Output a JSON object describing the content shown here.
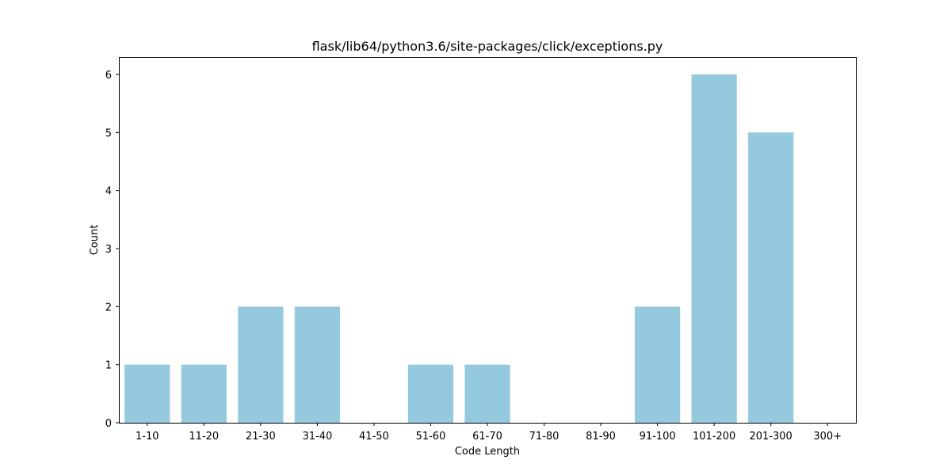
{
  "chart_data": {
    "type": "bar",
    "title": "flask/lib64/python3.6/site-packages/click/exceptions.py",
    "xlabel": "Code Length",
    "ylabel": "Count",
    "categories": [
      "1-10",
      "11-20",
      "21-30",
      "31-40",
      "41-50",
      "51-60",
      "61-70",
      "71-80",
      "81-90",
      "91-100",
      "101-200",
      "201-300",
      "300+"
    ],
    "values": [
      1,
      1,
      2,
      2,
      0,
      1,
      1,
      0,
      0,
      2,
      6,
      5,
      0
    ],
    "ylim": [
      0,
      6.3
    ],
    "yticks": [
      "0",
      "1",
      "2",
      "3",
      "4",
      "5",
      "6"
    ],
    "grid": false,
    "legend": "none",
    "bar_color": "#95c9de"
  }
}
